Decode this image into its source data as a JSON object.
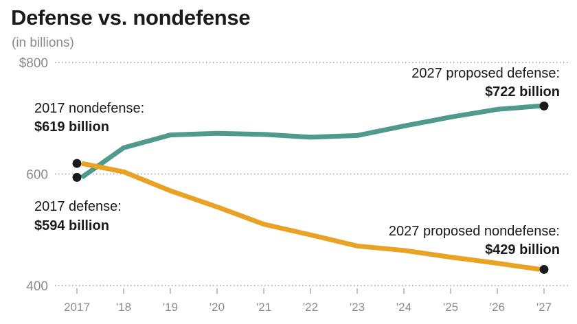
{
  "title": "Defense vs. nondefense",
  "subtitle": "(in billions)",
  "chart_data": {
    "type": "line",
    "title": "Defense vs. nondefense",
    "subtitle": "(in billions)",
    "xlabel": "",
    "ylabel": "",
    "x": [
      "2017",
      "'18",
      "'19",
      "'20",
      "'21",
      "'22",
      "'23",
      "'24",
      "'25",
      "'26",
      "'27"
    ],
    "ylim": [
      400,
      800
    ],
    "yticks": [
      400,
      600,
      800
    ],
    "ytick_labels": [
      "400",
      "600",
      "$800"
    ],
    "grid": "horizontal dotted",
    "series": [
      {
        "name": "defense",
        "color": "#4f9a8c",
        "values": [
          594,
          647,
          670,
          673,
          671,
          666,
          669,
          686,
          702,
          716,
          722
        ]
      },
      {
        "name": "nondefense",
        "color": "#e8a224",
        "values": [
          619,
          604,
          570,
          541,
          510,
          491,
          471,
          463,
          451,
          440,
          429
        ]
      }
    ],
    "annotations": [
      {
        "id": "nondef2017",
        "line1": "2017 nondefense:",
        "line2": "$619 billion"
      },
      {
        "id": "def2017",
        "line1": "2017 defense:",
        "line2": "$594 billion"
      },
      {
        "id": "def2027",
        "line1": "2027 proposed defense:",
        "line2": "$722 billion"
      },
      {
        "id": "nondef2027",
        "line1": "2027 proposed nondefense:",
        "line2": "$429 billion"
      }
    ]
  }
}
